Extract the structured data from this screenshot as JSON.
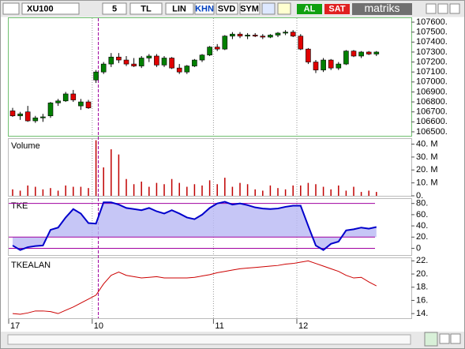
{
  "toolbar": {
    "symbol": "XU100",
    "period": "5",
    "currency": "TL",
    "scale": "LIN",
    "buttons": [
      "KHN",
      "SVD",
      "SYM"
    ],
    "buy": "AL",
    "sell": "SAT",
    "brand": "matriks"
  },
  "chart_data": [
    {
      "type": "candlestick",
      "categories": [
        "17",
        null,
        null,
        null,
        null,
        null,
        null,
        null,
        null,
        null,
        null,
        "10",
        null,
        null,
        null,
        null,
        null,
        null,
        null,
        null,
        null,
        null,
        null,
        null,
        null,
        null,
        null,
        "11",
        null,
        null,
        null,
        null,
        null,
        null,
        null,
        null,
        null,
        null,
        "12",
        null,
        null,
        null,
        null,
        null,
        null,
        null,
        null,
        null,
        null
      ],
      "open": [
        106710,
        106660,
        106700,
        106610,
        106640,
        106660,
        106790,
        106810,
        106880,
        106760,
        106800,
        107020,
        107100,
        107180,
        107250,
        107220,
        107180,
        107160,
        107240,
        107260,
        107170,
        107240,
        107140,
        107100,
        107160,
        107220,
        107270,
        107350,
        107330,
        107460,
        107480,
        107460,
        107470,
        107460,
        107450,
        107470,
        107490,
        107500,
        107460,
        107330,
        107200,
        107120,
        107220,
        107140,
        107180,
        107310,
        107260,
        107300,
        107280
      ],
      "high": [
        106740,
        106700,
        106760,
        106660,
        106680,
        106800,
        106830,
        106900,
        106920,
        106830,
        106820,
        107120,
        107200,
        107290,
        107290,
        107260,
        107240,
        107260,
        107280,
        107280,
        107260,
        107250,
        107180,
        107170,
        107230,
        107280,
        107360,
        107380,
        107470,
        107500,
        107500,
        107490,
        107490,
        107480,
        107480,
        107500,
        107520,
        107520,
        107480,
        107340,
        107220,
        107240,
        107230,
        107200,
        107320,
        107320,
        107310,
        107310,
        107310
      ],
      "low": [
        106650,
        106620,
        106600,
        106590,
        106600,
        106640,
        106760,
        106800,
        106800,
        106720,
        106730,
        106990,
        107080,
        107150,
        107190,
        107160,
        107150,
        107140,
        107200,
        107150,
        107150,
        107130,
        107080,
        107080,
        107150,
        107200,
        107260,
        107310,
        107320,
        107430,
        107440,
        107430,
        107450,
        107430,
        107440,
        107450,
        107470,
        107450,
        107320,
        107180,
        107090,
        107100,
        107120,
        107120,
        107170,
        107250,
        107240,
        107270,
        107260
      ],
      "close": [
        106660,
        106680,
        106610,
        106640,
        106650,
        106790,
        106810,
        106880,
        106820,
        106800,
        106740,
        107100,
        107180,
        107250,
        107220,
        107180,
        107160,
        107240,
        107260,
        107170,
        107240,
        107140,
        107100,
        107160,
        107220,
        107270,
        107350,
        107330,
        107460,
        107480,
        107460,
        107470,
        107460,
        107450,
        107470,
        107490,
        107500,
        107460,
        107330,
        107200,
        107120,
        107220,
        107140,
        107180,
        107310,
        107260,
        107300,
        107280,
        107300
      ],
      "up_color": "#008000",
      "down_color": "#e00000",
      "ylim": [
        106460,
        107640
      ],
      "yticks": [
        {
          "value": 106500,
          "label": "106500."
        },
        {
          "value": 106600,
          "label": "106600."
        },
        {
          "value": 106700,
          "label": "106700."
        },
        {
          "value": 106800,
          "label": "106800."
        },
        {
          "value": 106900,
          "label": "106900."
        },
        {
          "value": 107000,
          "label": "107000."
        },
        {
          "value": 107100,
          "label": "107100."
        },
        {
          "value": 107200,
          "label": "107200."
        },
        {
          "value": 107300,
          "label": "107300."
        },
        {
          "value": 107400,
          "label": "107400."
        },
        {
          "value": 107500,
          "label": "107500."
        },
        {
          "value": 107600,
          "label": "107600."
        }
      ]
    },
    {
      "type": "bar",
      "title": "Volume",
      "values": [
        5,
        4,
        8,
        7,
        5,
        6,
        4,
        8,
        7,
        7,
        6,
        43,
        22,
        36,
        32,
        13,
        9,
        11,
        7,
        10,
        9,
        13,
        10,
        7,
        9,
        8,
        12,
        9,
        14,
        7,
        10,
        9,
        5,
        4,
        8,
        6,
        5,
        8,
        8,
        10,
        9,
        7,
        5,
        8,
        4,
        7,
        3,
        4,
        3
      ],
      "color": "#c00000",
      "ylim": [
        0,
        44
      ],
      "yticks": [
        {
          "value": 0,
          "label": "0."
        },
        {
          "value": 10,
          "label": "10. M"
        },
        {
          "value": 20,
          "label": "20. M"
        },
        {
          "value": 30,
          "label": "30. M"
        },
        {
          "value": 40,
          "label": "40. M"
        }
      ]
    },
    {
      "type": "line",
      "title": "TKE",
      "values": [
        5,
        -3,
        2,
        4,
        5,
        33,
        37,
        55,
        70,
        62,
        45,
        44,
        82,
        82,
        78,
        72,
        70,
        68,
        72,
        66,
        62,
        68,
        62,
        55,
        52,
        60,
        72,
        80,
        83,
        78,
        80,
        77,
        73,
        71,
        70,
        71,
        74,
        76,
        76,
        40,
        5,
        -3,
        8,
        12,
        32,
        34,
        37,
        35,
        38
      ],
      "color": "#0000cc",
      "area_color": "#b8b8f4",
      "reference_lines": [
        0,
        20,
        80
      ],
      "reference_color": "#a000a0",
      "ylim": [
        -12,
        88
      ],
      "yticks": [
        0,
        {
          "value": 20,
          "label": "20."
        },
        {
          "value": 40,
          "label": "40."
        },
        {
          "value": 60,
          "label": "60."
        },
        {
          "value": 80,
          "label": "80."
        }
      ]
    },
    {
      "type": "line",
      "title": "TKEALAN",
      "values": [
        14.0,
        13.9,
        14.1,
        14.4,
        14.4,
        14.3,
        14.0,
        14.5,
        15.0,
        15.6,
        16.2,
        16.8,
        18.5,
        19.8,
        20.3,
        19.8,
        19.6,
        19.4,
        19.5,
        19.6,
        19.4,
        19.4,
        19.4,
        19.4,
        19.5,
        19.7,
        19.9,
        20.2,
        20.4,
        20.6,
        20.8,
        20.9,
        21.0,
        21.1,
        21.2,
        21.3,
        21.5,
        21.6,
        21.8,
        22.0,
        21.6,
        21.2,
        20.8,
        20.4,
        19.8,
        19.4,
        19.5,
        18.8,
        18.2
      ],
      "color": "#cc0000",
      "ylim": [
        13.3,
        22.4
      ],
      "yticks": [
        {
          "value": 14,
          "label": "14."
        },
        {
          "value": 16,
          "label": "16."
        },
        {
          "value": 18,
          "label": "18."
        },
        {
          "value": 20,
          "label": "20."
        },
        {
          "value": 22,
          "label": "22."
        }
      ]
    }
  ]
}
